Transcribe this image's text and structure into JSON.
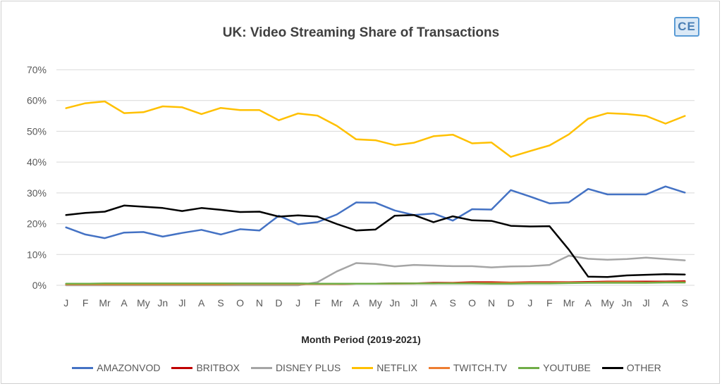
{
  "title": "UK:  Video Streaming Share of Transactions",
  "logo_text": "CE",
  "chart_data": {
    "type": "line",
    "title": "UK:  Video Streaming Share of Transactions",
    "xlabel": "Month Period (2019-2021)",
    "ylabel": "",
    "ylim": [
      0,
      70
    ],
    "yticks": [
      "0%",
      "10%",
      "20%",
      "30%",
      "40%",
      "50%",
      "60%",
      "70%"
    ],
    "categories": [
      "J",
      "F",
      "Mr",
      "A",
      "My",
      "Jn",
      "Jl",
      "A",
      "S",
      "O",
      "N",
      "D",
      "J",
      "F",
      "Mr",
      "A",
      "My",
      "Jn",
      "Jl",
      "A",
      "S",
      "O",
      "N",
      "D",
      "J",
      "F",
      "Mr",
      "A",
      "My",
      "Jn",
      "Jl",
      "A",
      "S"
    ],
    "grid": true,
    "legend_position": "bottom",
    "series": [
      {
        "name": "AMAZONVOD",
        "color": "#4472c4",
        "values": [
          18.8,
          16.5,
          15.3,
          17.1,
          17.3,
          15.8,
          17.0,
          18.0,
          16.5,
          18.2,
          17.8,
          22.6,
          19.8,
          20.5,
          23.0,
          26.9,
          26.8,
          24.3,
          22.8,
          23.3,
          21.0,
          24.7,
          24.6,
          30.9,
          28.8,
          26.6,
          26.9,
          31.3,
          29.5,
          29.5,
          29.5,
          32.1,
          30.1
        ]
      },
      {
        "name": "BRITBOX",
        "color": "#c00000",
        "values": [
          0.3,
          0.3,
          0.3,
          0.3,
          0.3,
          0.3,
          0.3,
          0.3,
          0.3,
          0.4,
          0.4,
          0.4,
          0.4,
          0.4,
          0.4,
          0.5,
          0.5,
          0.6,
          0.6,
          0.8,
          0.8,
          1.0,
          1.0,
          0.9,
          1.0,
          1.0,
          1.0,
          1.1,
          1.2,
          1.2,
          1.2,
          1.2,
          1.3
        ]
      },
      {
        "name": "DISNEY PLUS",
        "color": "#a5a5a5",
        "values": [
          0,
          0,
          0,
          0,
          0,
          0,
          0,
          0,
          0,
          0,
          0,
          0,
          0,
          1.0,
          4.5,
          7.2,
          6.9,
          6.1,
          6.6,
          6.4,
          6.2,
          6.2,
          5.8,
          6.1,
          6.2,
          6.6,
          9.6,
          8.6,
          8.3,
          8.5,
          9.0,
          8.5,
          8.1
        ]
      },
      {
        "name": "NETFLIX",
        "color": "#ffc000",
        "values": [
          57.5,
          59.1,
          59.7,
          55.9,
          56.2,
          58.1,
          57.8,
          55.6,
          57.6,
          56.9,
          56.9,
          53.6,
          55.8,
          55.1,
          51.8,
          47.4,
          47.1,
          45.5,
          46.3,
          48.4,
          48.9,
          46.1,
          46.4,
          41.7,
          43.6,
          45.4,
          49.0,
          54.1,
          55.9,
          55.6,
          55.0,
          52.5,
          55.0
        ]
      },
      {
        "name": "TWITCH.TV",
        "color": "#ed7d31",
        "values": [
          0.3,
          0.3,
          0.3,
          0.3,
          0.3,
          0.3,
          0.3,
          0.3,
          0.3,
          0.4,
          0.4,
          0.4,
          0.4,
          0.4,
          0.4,
          0.5,
          0.5,
          0.5,
          0.6,
          0.6,
          0.7,
          0.7,
          0.7,
          0.8,
          0.8,
          0.8,
          0.9,
          0.9,
          1.0,
          1.0,
          0.9,
          1.0,
          1.0
        ]
      },
      {
        "name": "YOUTUBE",
        "color": "#70ad47",
        "values": [
          0.5,
          0.5,
          0.6,
          0.6,
          0.6,
          0.6,
          0.6,
          0.6,
          0.6,
          0.6,
          0.6,
          0.6,
          0.6,
          0.5,
          0.5,
          0.5,
          0.5,
          0.6,
          0.6,
          0.6,
          0.6,
          0.6,
          0.5,
          0.5,
          0.6,
          0.6,
          0.7,
          0.8,
          0.8,
          0.8,
          0.8,
          0.9,
          0.9
        ]
      },
      {
        "name": "OTHER",
        "color": "#000000",
        "values": [
          22.8,
          23.5,
          23.9,
          25.9,
          25.5,
          25.1,
          24.1,
          25.1,
          24.5,
          23.8,
          23.9,
          22.3,
          22.7,
          22.3,
          19.9,
          17.8,
          18.1,
          22.6,
          22.8,
          20.5,
          22.4,
          21.1,
          20.9,
          19.3,
          19.1,
          19.2,
          11.6,
          2.8,
          2.7,
          3.2,
          3.4,
          3.6,
          3.5
        ]
      }
    ]
  }
}
